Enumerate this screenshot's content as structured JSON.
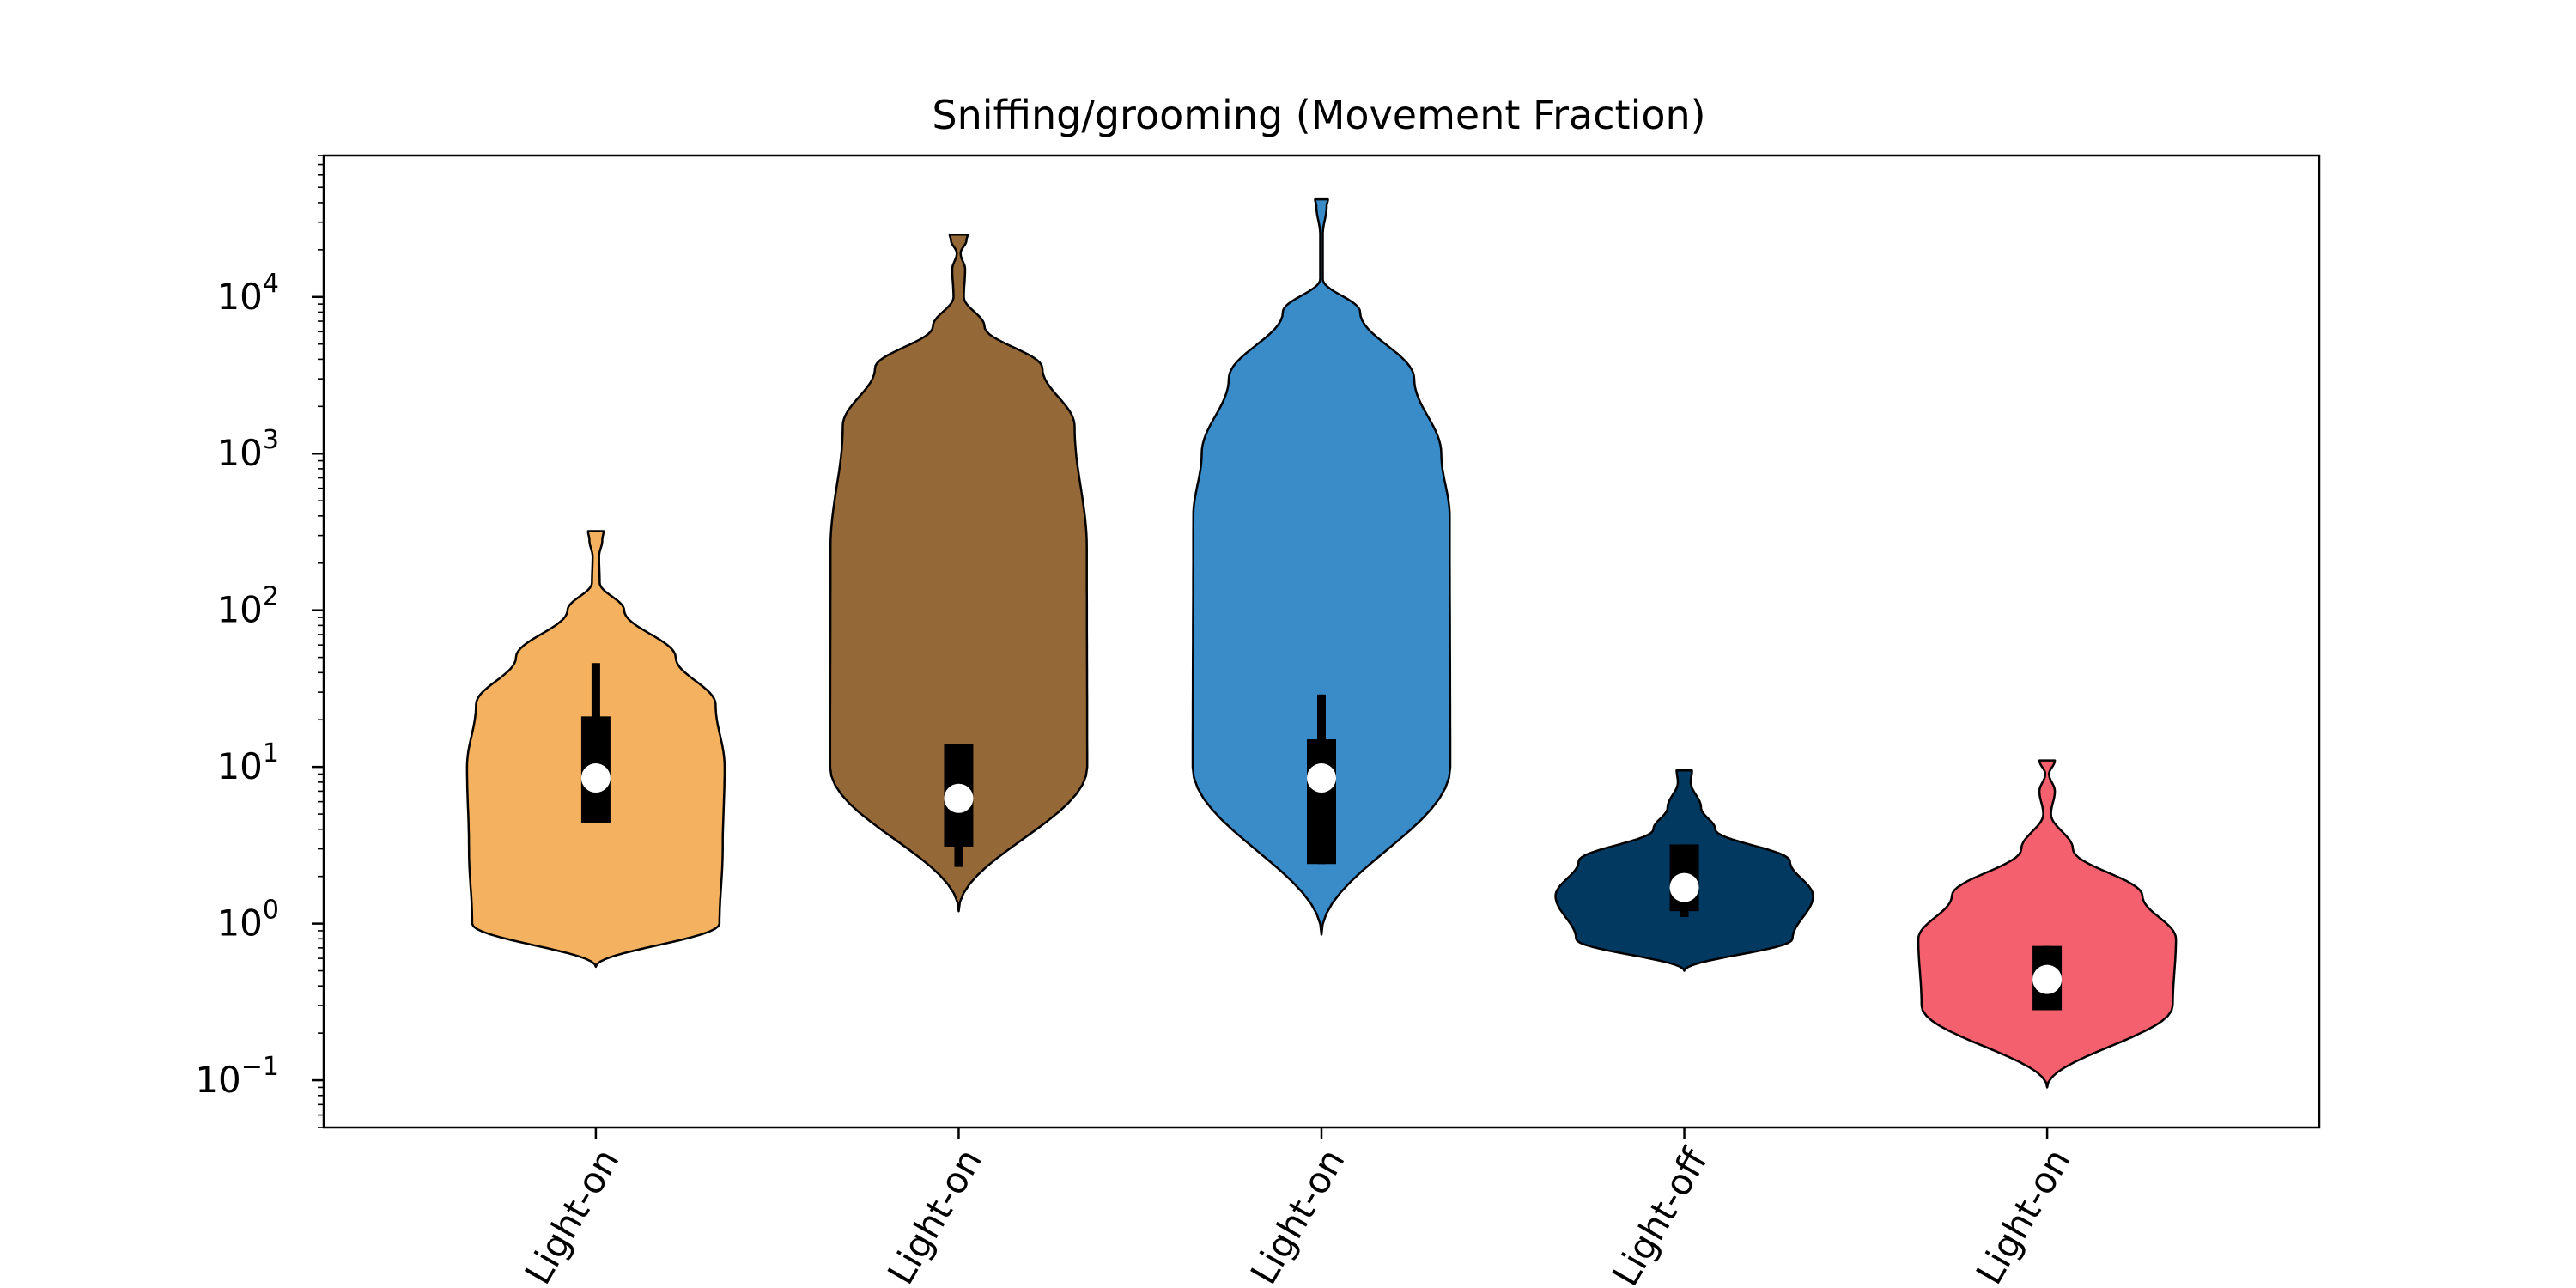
{
  "chart_data": {
    "type": "violin",
    "title": "Sniffing/grooming (Movement Fraction)",
    "xlabel": "",
    "ylabel": "",
    "yscale": "log",
    "ylim": [
      0.05,
      80000
    ],
    "yticks": [
      {
        "value": 0.1,
        "base": "10",
        "exp": "−1"
      },
      {
        "value": 1,
        "base": "10",
        "exp": "0"
      },
      {
        "value": 10,
        "base": "10",
        "exp": "1"
      },
      {
        "value": 100,
        "base": "10",
        "exp": "2"
      },
      {
        "value": 1000,
        "base": "10",
        "exp": "3"
      },
      {
        "value": 10000,
        "base": "10",
        "exp": "4"
      }
    ],
    "grid": false,
    "categories": [
      "Light-on",
      "Light-on",
      "Light-on",
      "Light-off",
      "Light-on"
    ],
    "violins": [
      {
        "label": "Light-on",
        "color": "#F4B15F",
        "min": 0.53,
        "max": 320,
        "median": 8.5,
        "q1": 4.4,
        "q3": 21,
        "whisker_low": 4.4,
        "whisker_high": 46,
        "profile": [
          [
            0.53,
            0.0
          ],
          [
            1,
            0.96
          ],
          [
            3,
            0.985
          ],
          [
            10,
            1.0
          ],
          [
            25,
            0.93
          ],
          [
            50,
            0.62
          ],
          [
            100,
            0.22
          ],
          [
            150,
            0.03
          ],
          [
            220,
            0.025
          ],
          [
            280,
            0.05
          ],
          [
            320,
            0.06
          ]
        ]
      },
      {
        "label": "Light-on",
        "color": "#946837",
        "min": 1.2,
        "max": 25000,
        "median": 6.3,
        "q1": 3.1,
        "q3": 14,
        "whisker_low": 2.3,
        "whisker_high": 14,
        "profile": [
          [
            1.2,
            0.0
          ],
          [
            10,
            0.998
          ],
          [
            250,
            0.995
          ],
          [
            1500,
            0.9
          ],
          [
            3500,
            0.65
          ],
          [
            6500,
            0.2
          ],
          [
            10000,
            0.04
          ],
          [
            15000,
            0.05
          ],
          [
            19000,
            0.015
          ],
          [
            23000,
            0.06
          ],
          [
            25000,
            0.07
          ]
        ]
      },
      {
        "label": "Light-on",
        "color": "#3A8CC9",
        "min": 0.85,
        "max": 42000,
        "median": 8.5,
        "q1": 2.4,
        "q3": 15,
        "whisker_low": 2.4,
        "whisker_high": 29,
        "profile": [
          [
            0.85,
            0.0
          ],
          [
            10,
            1.0
          ],
          [
            400,
            0.995
          ],
          [
            1000,
            0.93
          ],
          [
            3000,
            0.72
          ],
          [
            8000,
            0.3
          ],
          [
            13000,
            0.01
          ],
          [
            25000,
            0.01
          ],
          [
            38000,
            0.04
          ],
          [
            42000,
            0.05
          ]
        ]
      },
      {
        "label": "Light-off",
        "color": "#023960",
        "min": 0.5,
        "max": 9.5,
        "median": 1.7,
        "q1": 1.2,
        "q3": 3.2,
        "whisker_low": 1.1,
        "whisker_high": 3.2,
        "profile": [
          [
            0.5,
            0.0
          ],
          [
            0.8,
            0.84
          ],
          [
            1.5,
            1.0
          ],
          [
            2.5,
            0.82
          ],
          [
            4,
            0.24
          ],
          [
            5.5,
            0.13
          ],
          [
            8,
            0.05
          ],
          [
            9.5,
            0.06
          ]
        ]
      },
      {
        "label": "Light-on",
        "color": "#F4606E",
        "min": 0.09,
        "max": 11,
        "median": 0.44,
        "q1": 0.28,
        "q3": 0.72,
        "whisker_low": 0.28,
        "whisker_high": 0.72,
        "profile": [
          [
            0.09,
            0.0
          ],
          [
            0.3,
            0.975
          ],
          [
            0.8,
            1.0
          ],
          [
            1.5,
            0.74
          ],
          [
            3,
            0.2
          ],
          [
            5,
            0.03
          ],
          [
            7,
            0.06
          ],
          [
            9,
            0.015
          ],
          [
            11,
            0.06
          ]
        ]
      }
    ]
  }
}
